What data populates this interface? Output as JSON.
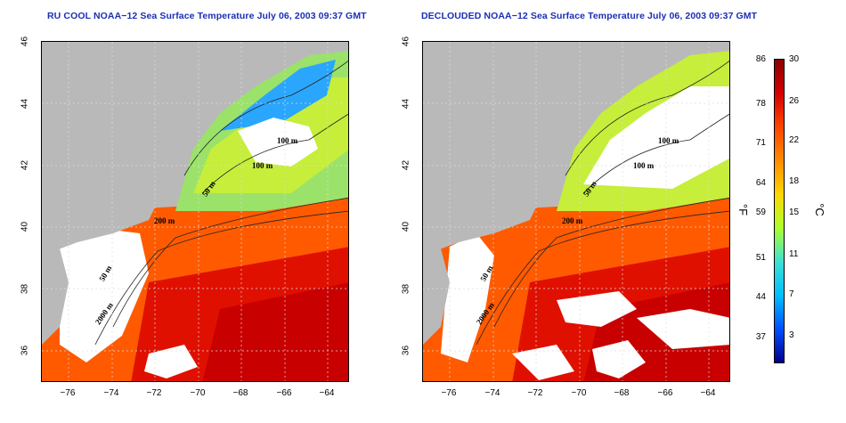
{
  "panels": [
    {
      "title": "RU COOL NOAA−12 Sea Surface Temperature July 06, 2003 09:37 GMT"
    },
    {
      "title": "DECLOUDED NOAA−12 Sea Surface Temperature July 06, 2003 09:37 GMT"
    }
  ],
  "axes": {
    "y_ticks": [
      "46",
      "44",
      "42",
      "40",
      "38",
      "36"
    ],
    "x_ticks": [
      "−76",
      "−74",
      "−72",
      "−70",
      "−68",
      "−66",
      "−64"
    ]
  },
  "contours": [
    "100 m",
    "100 m",
    "50 m",
    "200 m",
    "50 m",
    "2000 m"
  ],
  "colorbar": {
    "fahrenheit": [
      "86",
      "78",
      "71",
      "64",
      "59",
      "51",
      "44",
      "37"
    ],
    "celsius": [
      "30",
      "26",
      "22",
      "18",
      "15",
      "11",
      "7",
      "3"
    ],
    "f_unit": "°F",
    "c_unit": "°C",
    "colors": [
      "#8b0000",
      "#d40000",
      "#ff4500",
      "#ff8c00",
      "#ffd700",
      "#adff2f",
      "#40e0d0",
      "#00bfff",
      "#0050ff",
      "#00008b"
    ]
  },
  "map_colors": {
    "land": "#b9b9b9",
    "cloud": "#ffffff",
    "warm": "#ff5a00",
    "hot": "#e01000",
    "cool": "#9be26a",
    "cold": "#20a0ff",
    "mild": "#ffd400"
  }
}
